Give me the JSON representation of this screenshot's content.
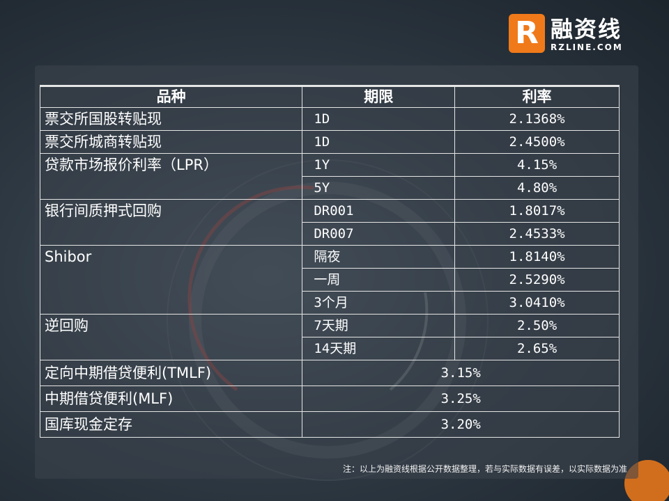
{
  "logo": {
    "mark": "R",
    "cn": "融资线",
    "en": "RZLINE.COM"
  },
  "table": {
    "headers": {
      "product": "品种",
      "term": "期限",
      "rate": "利率"
    },
    "rows": [
      {
        "product": "票交所国股转贴现",
        "term": "1D",
        "rate": "2.1368%"
      },
      {
        "product": "票交所城商转贴现",
        "term": "1D",
        "rate": "2.4500%"
      },
      {
        "product": "贷款市场报价利率（LPR）",
        "term": "1Y",
        "rate": "4.15%"
      },
      {
        "product": "",
        "term": "5Y",
        "rate": "4.80%"
      },
      {
        "product": "银行间质押式回购",
        "term": "DR001",
        "rate": "1.8017%"
      },
      {
        "product": "",
        "term": "DR007",
        "rate": "2.4533%"
      },
      {
        "product": "Shibor",
        "term": "隔夜",
        "rate": "1.8140%"
      },
      {
        "product": "",
        "term": "一周",
        "rate": "2.5290%"
      },
      {
        "product": "",
        "term": "3个月",
        "rate": "3.0410%"
      },
      {
        "product": "逆回购",
        "term": "7天期",
        "rate": "2.50%"
      },
      {
        "product": "",
        "term": "14天期",
        "rate": "2.65%"
      },
      {
        "product": "定向中期借贷便利(TMLF)",
        "rate": "3.15%"
      },
      {
        "product": "中期借贷便利(MLF)",
        "rate": "3.25%"
      },
      {
        "product": "国库现金定存",
        "rate": "3.20%"
      }
    ]
  },
  "note": "注：以上为融资线根据公开数据整理，若与实际数据有误差，以实际数据为准",
  "colors": {
    "accent": "#f07a1a",
    "background": "#2f3a44",
    "text": "#ffffff"
  }
}
